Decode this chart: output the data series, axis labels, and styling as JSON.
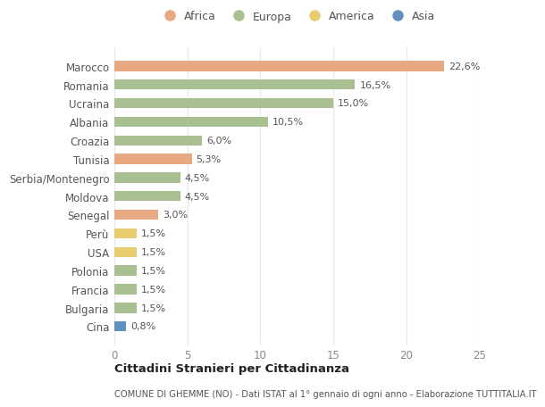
{
  "countries": [
    "Marocco",
    "Romania",
    "Ucraina",
    "Albania",
    "Croazia",
    "Tunisia",
    "Serbia/Montenegro",
    "Moldova",
    "Senegal",
    "Perù",
    "USA",
    "Polonia",
    "Francia",
    "Bulgaria",
    "Cina"
  ],
  "values": [
    22.6,
    16.5,
    15.0,
    10.5,
    6.0,
    5.3,
    4.5,
    4.5,
    3.0,
    1.5,
    1.5,
    1.5,
    1.5,
    1.5,
    0.8
  ],
  "labels": [
    "22,6%",
    "16,5%",
    "15,0%",
    "10,5%",
    "6,0%",
    "5,3%",
    "4,5%",
    "4,5%",
    "3,0%",
    "1,5%",
    "1,5%",
    "1,5%",
    "1,5%",
    "1,5%",
    "0,8%"
  ],
  "continents": [
    "Africa",
    "Europa",
    "Europa",
    "Europa",
    "Europa",
    "Africa",
    "Europa",
    "Europa",
    "Africa",
    "America",
    "America",
    "Europa",
    "Europa",
    "Europa",
    "Asia"
  ],
  "colors": {
    "Africa": "#E8A882",
    "Europa": "#A8C090",
    "America": "#E8CC70",
    "Asia": "#6090C0"
  },
  "legend_order": [
    "Africa",
    "Europa",
    "America",
    "Asia"
  ],
  "xlim": [
    0,
    25
  ],
  "xticks": [
    0,
    5,
    10,
    15,
    20,
    25
  ],
  "title": "Cittadini Stranieri per Cittadinanza",
  "subtitle": "COMUNE DI GHEMME (NO) - Dati ISTAT al 1° gennaio di ogni anno - Elaborazione TUTTITALIA.IT",
  "background_color": "#ffffff",
  "grid_color": "#e8e8e8",
  "bar_height": 0.55
}
